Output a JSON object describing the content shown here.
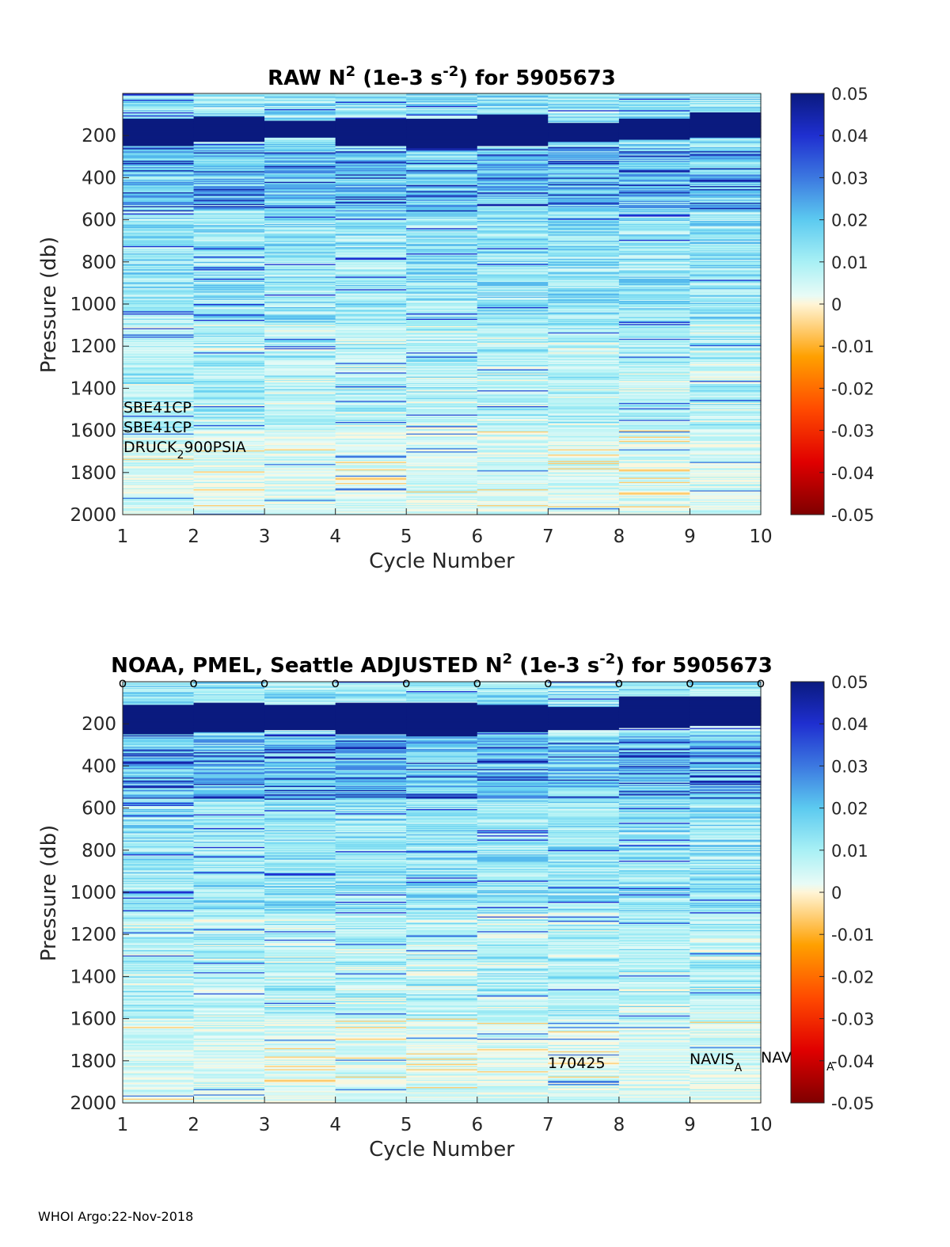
{
  "chart_data": [
    {
      "type": "heatmap",
      "title_parts": {
        "pre": "RAW N",
        "sup1": "2",
        "mid": " (1e-3 s",
        "sup2": "-2",
        "post": ") for 5905673"
      },
      "xlabel": "Cycle Number",
      "ylabel": "Pressure (db)",
      "x_ticks": [
        "1",
        "2",
        "3",
        "4",
        "5",
        "6",
        "7",
        "8",
        "9",
        "10"
      ],
      "y_ticks": [
        "200",
        "400",
        "600",
        "800",
        "1000",
        "1200",
        "1400",
        "1600",
        "1800",
        "2000"
      ],
      "x_range": [
        1,
        10
      ],
      "y_range": [
        0,
        2000
      ],
      "y_reversed": true,
      "colorbar": {
        "range": [
          -0.05,
          0.05
        ],
        "ticks": [
          "0.05",
          "0.04",
          "0.03",
          "0.02",
          "0.01",
          "0",
          "-0.01",
          "-0.02",
          "-0.03",
          "-0.04",
          "-0.05"
        ]
      },
      "cycles": [
        1,
        2,
        3,
        4,
        5,
        6,
        7,
        8,
        9
      ],
      "strong_layer_db": [
        [
          120,
          250
        ],
        [
          110,
          230
        ],
        [
          130,
          210
        ],
        [
          120,
          250
        ],
        [
          120,
          260
        ],
        [
          100,
          250
        ],
        [
          140,
          230
        ],
        [
          120,
          220
        ],
        [
          90,
          210
        ]
      ],
      "annotations": {
        "sensor1": "SBE41CP",
        "sensor2": "SBE41CP",
        "pressure_pre": "DRUCK",
        "pressure_sub": "2",
        "pressure_post": "900PSIA"
      }
    },
    {
      "type": "heatmap",
      "title_parts": {
        "pre": "NOAA, PMEL, Seattle  ADJUSTED N",
        "sup1": "2",
        "mid": " (1e-3 s",
        "sup2": "-2",
        "post": ") for 5905673"
      },
      "xlabel": "Cycle Number",
      "ylabel": "Pressure (db)",
      "x_ticks": [
        "1",
        "2",
        "3",
        "4",
        "5",
        "6",
        "7",
        "8",
        "9",
        "10"
      ],
      "y_ticks": [
        "200",
        "400",
        "600",
        "800",
        "1000",
        "1200",
        "1400",
        "1600",
        "1800",
        "2000"
      ],
      "x_range": [
        1,
        10
      ],
      "y_range": [
        0,
        2000
      ],
      "y_reversed": true,
      "colorbar": {
        "range": [
          -0.05,
          0.05
        ],
        "ticks": [
          "0.05",
          "0.04",
          "0.03",
          "0.02",
          "0.01",
          "0",
          "-0.01",
          "-0.02",
          "-0.03",
          "-0.04",
          "-0.05"
        ]
      },
      "cycles": [
        1,
        2,
        3,
        4,
        5,
        6,
        7,
        8,
        9
      ],
      "strong_layer_db": [
        [
          110,
          250
        ],
        [
          100,
          240
        ],
        [
          110,
          230
        ],
        [
          100,
          250
        ],
        [
          100,
          260
        ],
        [
          110,
          240
        ],
        [
          120,
          230
        ],
        [
          70,
          220
        ],
        [
          70,
          210
        ]
      ],
      "qc_markers": [
        "o",
        "o",
        "o",
        "o",
        "o",
        "o",
        "o",
        "o",
        "o",
        "o"
      ],
      "annotations": {
        "date": "170425",
        "float_pre": "NAVIS",
        "float_sub": "A",
        "float_partial": "NAV",
        "float_partial_sub": "A"
      }
    }
  ],
  "footer": {
    "text": "WHOI Argo:22-Nov-2018"
  }
}
